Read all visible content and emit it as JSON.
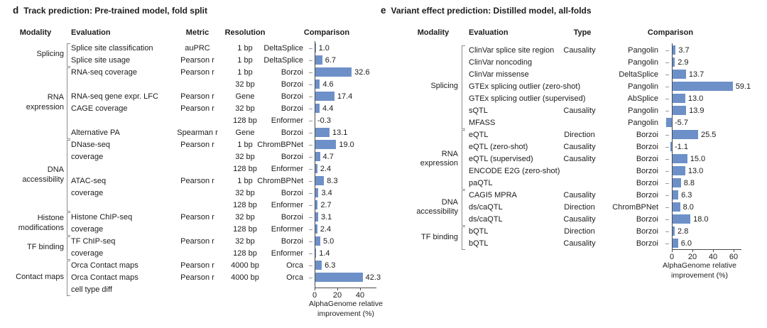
{
  "figure": {
    "bar_color": "#6d90c8",
    "text_color": "#1c1c1c",
    "axis_color": "#4a4a4a"
  },
  "panels": [
    {
      "letter": "d",
      "title": "Track prediction: Pre-trained model, fold split",
      "headers": {
        "modality": "Modality",
        "evaluation": "Evaluation",
        "metric": "Metric",
        "resolution": "Resolution",
        "comparison": "Comparison"
      },
      "axis": {
        "ticks": [
          "0",
          "20",
          "40"
        ],
        "caption_line1": "AlphaGenome relative",
        "caption_line2": "improvement (%)"
      },
      "groups": [
        {
          "label": [
            "Splicing"
          ],
          "start": 0,
          "end": 1
        },
        {
          "label": [
            "RNA",
            "expression"
          ],
          "start": 2,
          "end": 7
        },
        {
          "label": [
            "DNA",
            "accessibility"
          ],
          "start": 8,
          "end": 13
        },
        {
          "label": [
            "Histone",
            "modifications"
          ],
          "start": 14,
          "end": 15
        },
        {
          "label": [
            "TF binding"
          ],
          "start": 16,
          "end": 17
        },
        {
          "label": [
            "Contact maps"
          ],
          "start": 18,
          "end": 20
        }
      ],
      "rows": [
        {
          "evaluation": "Splice site classification",
          "metric": "auPRC",
          "resolution": "1 bp",
          "comparison": "DeltaSplice",
          "value": 1.0,
          "label": "1.0"
        },
        {
          "evaluation": "Splice site usage",
          "metric": "Pearson r",
          "resolution": "1 bp",
          "comparison": "DeltaSplice",
          "value": 6.7,
          "label": "6.7"
        },
        {
          "evaluation": "RNA-seq coverage",
          "metric": "Pearson r",
          "resolution": "1 bp",
          "comparison": "Borzoi",
          "value": 32.6,
          "label": "32.6"
        },
        {
          "evaluation": "",
          "metric": "",
          "resolution": "32 bp",
          "comparison": "Borzoi",
          "value": 4.6,
          "label": "4.6"
        },
        {
          "evaluation": "RNA-seq gene expr. LFC",
          "metric": "Pearson r",
          "resolution": "Gene",
          "comparison": "Borzoi",
          "value": 17.4,
          "label": "17.4"
        },
        {
          "evaluation": "CAGE coverage",
          "metric": "Pearson r",
          "resolution": "32 bp",
          "comparison": "Borzoi",
          "value": 4.4,
          "label": "4.4"
        },
        {
          "evaluation": "",
          "metric": "",
          "resolution": "128 bp",
          "comparison": "Enformer",
          "value": -0.3,
          "label": "-0.3"
        },
        {
          "evaluation": "Alternative PA",
          "metric": "Spearman r",
          "resolution": "Gene",
          "comparison": "Borzoi",
          "value": 13.1,
          "label": "13.1"
        },
        {
          "evaluation": "DNase-seq",
          "metric": "Pearson r",
          "resolution": "1 bp",
          "comparison": "ChromBPNet",
          "value": 19.0,
          "label": "19.0"
        },
        {
          "evaluation": "coverage",
          "metric": "",
          "resolution": "32 bp",
          "comparison": "Borzoi",
          "value": 4.7,
          "label": "4.7"
        },
        {
          "evaluation": "",
          "metric": "",
          "resolution": "128 bp",
          "comparison": "Enformer",
          "value": 2.4,
          "label": "2.4"
        },
        {
          "evaluation": "ATAC-seq",
          "metric": "Pearson r",
          "resolution": "1 bp",
          "comparison": "ChromBPNet",
          "value": 8.3,
          "label": "8.3"
        },
        {
          "evaluation": "coverage",
          "metric": "",
          "resolution": "32 bp",
          "comparison": "Borzoi",
          "value": 3.4,
          "label": "3.4"
        },
        {
          "evaluation": "",
          "metric": "",
          "resolution": "128 bp",
          "comparison": "Enformer",
          "value": 2.7,
          "label": "2.7"
        },
        {
          "evaluation": "Histone ChIP-seq",
          "metric": "Pearson r",
          "resolution": "32 bp",
          "comparison": "Borzoi",
          "value": 3.1,
          "label": "3.1"
        },
        {
          "evaluation": "coverage",
          "metric": "",
          "resolution": "128 bp",
          "comparison": "Enformer",
          "value": 2.4,
          "label": "2.4"
        },
        {
          "evaluation": "TF ChIP-seq",
          "metric": "Pearson r",
          "resolution": "32 bp",
          "comparison": "Borzoi",
          "value": 5.0,
          "label": "5.0"
        },
        {
          "evaluation": "coverage",
          "metric": "",
          "resolution": "128 bp",
          "comparison": "Enformer",
          "value": 1.4,
          "label": "1.4"
        },
        {
          "evaluation": "Orca Contact maps",
          "metric": "Pearson r",
          "resolution": "4000 bp",
          "comparison": "Orca",
          "value": 6.3,
          "label": "6.3"
        },
        {
          "evaluation": "Orca Contact maps",
          "metric": "Pearson r",
          "resolution": "4000 bp",
          "comparison": "Orca",
          "value": 42.3,
          "label": "42.3"
        },
        {
          "evaluation": "cell type diff",
          "metric": "",
          "resolution": "",
          "comparison": "",
          "value": null,
          "label": ""
        }
      ]
    },
    {
      "letter": "e",
      "title": "Variant effect prediction: Distilled model, all-folds",
      "headers": {
        "modality": "Modality",
        "evaluation": "Evaluation",
        "type": "Type",
        "comparison": "Comparison"
      },
      "axis": {
        "ticks": [
          "0",
          "20",
          "40",
          "60"
        ],
        "caption_line1": "AlphaGenome relative",
        "caption_line2": "improvement (%)"
      },
      "groups": [
        {
          "label": [
            "Splicing"
          ],
          "start": 0,
          "end": 6
        },
        {
          "label": [
            "RNA",
            "expression"
          ],
          "start": 7,
          "end": 11
        },
        {
          "label": [
            "DNA",
            "accessibility"
          ],
          "start": 12,
          "end": 14
        },
        {
          "label": [
            "TF binding"
          ],
          "start": 15,
          "end": 16
        }
      ],
      "rows": [
        {
          "evaluation": "ClinVar splice site region",
          "type": "Causality",
          "comparison": "Pangolin",
          "value": 3.7,
          "label": "3.7"
        },
        {
          "evaluation": "ClinVar noncoding",
          "type": "",
          "comparison": "Pangolin",
          "value": 2.9,
          "label": "2.9"
        },
        {
          "evaluation": "ClinVar missense",
          "type": "",
          "comparison": "DeltaSplice",
          "value": 13.7,
          "label": "13.7"
        },
        {
          "evaluation": "GTEx splicing outlier (zero-shot)",
          "type": "",
          "comparison": "Pangolin",
          "value": 59.1,
          "label": "59.1"
        },
        {
          "evaluation": "GTEx splicing outlier (supervised)",
          "type": "",
          "comparison": "AbSplice",
          "value": 13.0,
          "label": "13.0"
        },
        {
          "evaluation": "sQTL",
          "type": "Causality",
          "comparison": "Pangolin",
          "value": 13.9,
          "label": "13.9"
        },
        {
          "evaluation": "MFASS",
          "type": "",
          "comparison": "Pangolin",
          "value": -5.7,
          "label": "-5.7"
        },
        {
          "evaluation": "eQTL",
          "type": "Direction",
          "comparison": "Borzoi",
          "value": 25.5,
          "label": "25.5"
        },
        {
          "evaluation": "eQTL (zero-shot)",
          "type": "Causality",
          "comparison": "Borzoi",
          "value": -1.1,
          "label": "-1.1"
        },
        {
          "evaluation": "eQTL (supervised)",
          "type": "Causality",
          "comparison": "Borzoi",
          "value": 15.0,
          "label": "15.0"
        },
        {
          "evaluation": "ENCODE E2G (zero-shot)",
          "type": "",
          "comparison": "Borzoi",
          "value": 13.0,
          "label": "13.0"
        },
        {
          "evaluation": "paQTL",
          "type": "",
          "comparison": "Borzoi",
          "value": 8.8,
          "label": "8.8"
        },
        {
          "evaluation": "CAGI5 MPRA",
          "type": "Causality",
          "comparison": "Borzoi",
          "value": 6.3,
          "label": "6.3"
        },
        {
          "evaluation": "ds/caQTL",
          "type": "Direction",
          "comparison": "ChromBPNet",
          "value": 8.0,
          "label": "8.0"
        },
        {
          "evaluation": "ds/caQTL",
          "type": "Causality",
          "comparison": "Borzoi",
          "value": 18.0,
          "label": "18.0"
        },
        {
          "evaluation": "bQTL",
          "type": "Direction",
          "comparison": "Borzoi",
          "value": 2.8,
          "label": "2.8"
        },
        {
          "evaluation": "bQTL",
          "type": "Causality",
          "comparison": "Borzoi",
          "value": 6.0,
          "label": "6.0"
        }
      ]
    }
  ],
  "chart_data": [
    {
      "type": "bar",
      "orientation": "horizontal",
      "title": "Track prediction: Pre-trained model, fold split",
      "xlabel": "AlphaGenome relative improvement (%)",
      "xticks": [
        0,
        20,
        40
      ],
      "xlim": [
        -2,
        54
      ],
      "grid": false,
      "y_axis_labels_are": "comparison model",
      "categories": [
        "DeltaSplice",
        "DeltaSplice",
        "Borzoi",
        "Borzoi",
        "Borzoi",
        "Borzoi",
        "Enformer",
        "Borzoi",
        "ChromBPNet",
        "Borzoi",
        "Enformer",
        "ChromBPNet",
        "Borzoi",
        "Enformer",
        "Borzoi",
        "Enformer",
        "Borzoi",
        "Enformer",
        "Orca",
        "Orca"
      ],
      "values": [
        1.0,
        6.7,
        32.6,
        4.6,
        17.4,
        4.4,
        -0.3,
        13.1,
        19.0,
        4.7,
        2.4,
        8.3,
        3.4,
        2.7,
        3.1,
        2.4,
        5.0,
        1.4,
        6.3,
        42.3
      ]
    },
    {
      "type": "bar",
      "orientation": "horizontal",
      "title": "Variant effect prediction: Distilled model, all-folds",
      "xlabel": "AlphaGenome relative improvement (%)",
      "xticks": [
        0,
        20,
        40,
        60
      ],
      "xlim": [
        -7,
        66
      ],
      "grid": false,
      "y_axis_labels_are": "comparison model",
      "categories": [
        "Pangolin",
        "Pangolin",
        "DeltaSplice",
        "Pangolin",
        "AbSplice",
        "Pangolin",
        "Pangolin",
        "Borzoi",
        "Borzoi",
        "Borzoi",
        "Borzoi",
        "Borzoi",
        "Borzoi",
        "ChromBPNet",
        "Borzoi",
        "Borzoi",
        "Borzoi"
      ],
      "values": [
        3.7,
        2.9,
        13.7,
        59.1,
        13.0,
        13.9,
        -5.7,
        25.5,
        -1.1,
        15.0,
        13.0,
        8.8,
        6.3,
        8.0,
        18.0,
        2.8,
        6.0
      ]
    }
  ]
}
